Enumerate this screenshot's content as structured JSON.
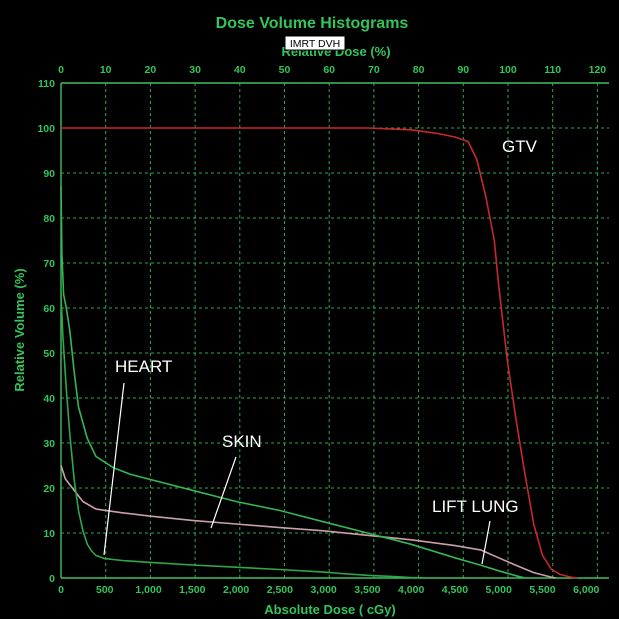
{
  "chart_data": {
    "type": "line",
    "title": "Dose Volume Histograms",
    "top_axis_label": "Relative Dose (%)",
    "badge": "IMRT DVH",
    "xlabel": "Absolute Dose ( cGy)",
    "ylabel": "Relative Volume (%)",
    "xlim": [
      0,
      6260
    ],
    "ylim": [
      0,
      110
    ],
    "top_xlim": [
      0,
      122.6
    ],
    "grid": true,
    "bottom_ticks": [
      "0",
      "500",
      "1,000",
      "1,500",
      "2,000",
      "2,500",
      "3,000",
      "3,500",
      "4,000",
      "4,500",
      "5,000",
      "5,500",
      "6,000"
    ],
    "top_ticks": [
      "0",
      "10",
      "20",
      "30",
      "40",
      "50",
      "60",
      "70",
      "80",
      "90",
      "100",
      "110",
      "120"
    ],
    "y_ticks": [
      "0",
      "10",
      "20",
      "30",
      "40",
      "50",
      "60",
      "70",
      "80",
      "90",
      "100",
      "110"
    ],
    "colors": {
      "background": "#000000",
      "grid": "#2ea84a",
      "text": "#33c45a",
      "annotation": "#ffffff"
    },
    "series": [
      {
        "name": "GTV",
        "color": "#c8282a",
        "x": [
          0,
          1000,
          2000,
          3000,
          3500,
          4000,
          4300,
          4500,
          4650,
          4750,
          4850,
          4950,
          5000,
          5100,
          5200,
          5300,
          5400,
          5500,
          5600,
          5700,
          5800,
          5850,
          5900
        ],
        "y": [
          100,
          100,
          100,
          100,
          100,
          99.6,
          98.8,
          98,
          97,
          93,
          85,
          75,
          65,
          48,
          35,
          23,
          12,
          5,
          2,
          0.8,
          0.3,
          0.1,
          0
        ]
      },
      {
        "name": "SKIN",
        "color": "#c9a0a8",
        "x": [
          0,
          50,
          150,
          250,
          400,
          700,
          1000,
          1500,
          2000,
          2500,
          3000,
          3500,
          4000,
          4500,
          4800,
          5000,
          5200,
          5400,
          5600,
          5650
        ],
        "y": [
          25,
          22,
          19.5,
          17,
          15.3,
          14.5,
          13.8,
          12.8,
          12,
          11.2,
          10.5,
          9.5,
          8.5,
          7.2,
          6.2,
          4.5,
          2.8,
          1.2,
          0.2,
          0
        ]
      },
      {
        "name": "HEART",
        "color": "#2fa84a",
        "x": [
          0,
          20,
          60,
          100,
          150,
          200,
          250,
          300,
          350,
          400,
          500,
          700,
          1000,
          1500,
          2000,
          2500,
          3000,
          3200,
          3500,
          3800,
          4000,
          4200
        ],
        "y": [
          63,
          54,
          42,
          32,
          22,
          15,
          10.5,
          7.5,
          6,
          5,
          4.3,
          3.9,
          3.5,
          2.9,
          2.4,
          1.9,
          1.3,
          1.0,
          0.6,
          0.3,
          0.1,
          0
        ]
      },
      {
        "name": "LIFT LUNG",
        "color": "#36b654",
        "x": [
          0,
          10,
          30,
          60,
          100,
          150,
          200,
          300,
          400,
          600,
          800,
          1000,
          1500,
          2000,
          2500,
          3000,
          3500,
          4000,
          4500,
          4800,
          5000,
          5200,
          5300
        ],
        "y": [
          87,
          72,
          63,
          60,
          55,
          46,
          38,
          31,
          27,
          24.5,
          23,
          22,
          19.5,
          17,
          15,
          12.5,
          10,
          7.5,
          4.5,
          2.8,
          1.6,
          0.5,
          0
        ]
      }
    ],
    "annotations": [
      {
        "text": "GTV"
      },
      {
        "text": "HEART"
      },
      {
        "text": "SKIN"
      },
      {
        "text": "LIFT LUNG"
      }
    ]
  }
}
